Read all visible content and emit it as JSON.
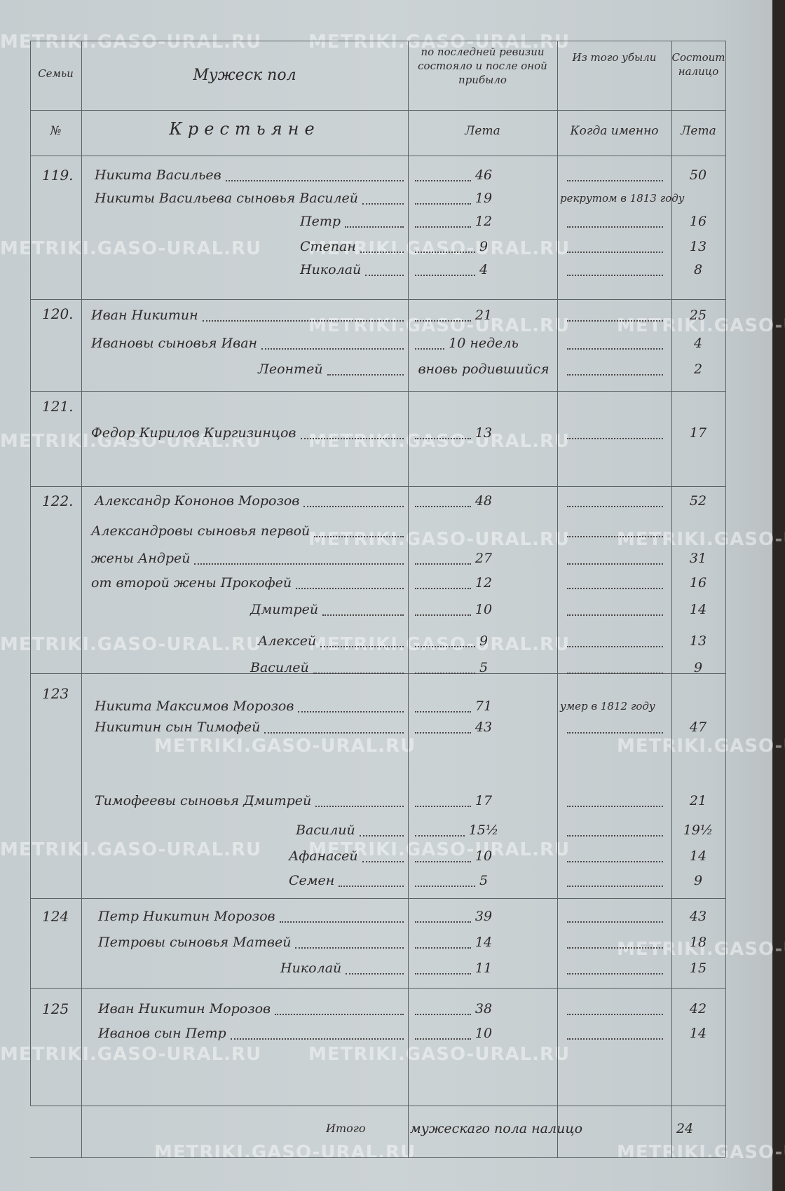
{
  "watermark": "METRIKI.GASO-URAL.RU",
  "header": {
    "columns": [
      {
        "top": "Семьи",
        "bottom": "№"
      },
      {
        "top": "Мужеск пол",
        "bottom": "Крестьяне"
      },
      {
        "top": "по последней ревизии состояло и после оной прибыло",
        "bottom": "Лета"
      },
      {
        "top": "Из того убыли",
        "bottom": "Когда именно"
      },
      {
        "top": "Состоит налицо",
        "bottom": "Лета"
      }
    ]
  },
  "families": [
    {
      "number": "119.",
      "lines": [
        {
          "name": "Никита Васильев",
          "age": "46",
          "present": "50"
        },
        {
          "name": "Никиты Васильева сыновья Василей",
          "age": "19",
          "removed": "рекрутом в 1813 году"
        },
        {
          "name": "Петр",
          "age": "12",
          "present": "16"
        },
        {
          "name": "Степан",
          "age": "9",
          "present": "13"
        },
        {
          "name": "Николай",
          "age": "4",
          "present": "8"
        }
      ]
    },
    {
      "number": "120.",
      "lines": [
        {
          "name": "Иван Никитин",
          "age": "21",
          "present": "25"
        },
        {
          "name": "Ивановы сыновья Иван",
          "age": "10 недель",
          "present": "4"
        },
        {
          "name": "Леонтей",
          "age": "вновь родившийся",
          "present": "2"
        }
      ]
    },
    {
      "number": "121.",
      "lines": [
        {
          "name": "Федор Кирилов Киргизинцов",
          "age": "13",
          "present": "17"
        }
      ]
    },
    {
      "number": "122.",
      "lines": [
        {
          "name": "Александр Кононов Морозов",
          "age": "48",
          "present": "52"
        },
        {
          "name": "Александровы сыновья первой"
        },
        {
          "name": "жены Андрей",
          "age": "27",
          "present": "31"
        },
        {
          "name": "от второй жены Прокофей",
          "age": "12",
          "present": "16"
        },
        {
          "name": "Дмитрей",
          "age": "10",
          "present": "14"
        },
        {
          "name": "Алексей",
          "age": "9",
          "present": "13"
        },
        {
          "name": "Василей",
          "age": "5",
          "present": "9"
        }
      ]
    },
    {
      "number": "123",
      "lines": [
        {
          "name": "Никита Максимов Морозов",
          "age": "71",
          "removed": "умер в 1812 году"
        },
        {
          "name": "Никитин сын Тимофей",
          "age": "43",
          "present": "47"
        },
        {
          "name": "Тимофеевы сыновья Дмитрей",
          "age": "17",
          "present": "21"
        },
        {
          "name": "Василий",
          "age": "15½",
          "present": "19½"
        },
        {
          "name": "Афанасей",
          "age": "10",
          "present": "14"
        },
        {
          "name": "Семен",
          "age": "5",
          "present": "9"
        }
      ]
    },
    {
      "number": "124",
      "lines": [
        {
          "name": "Петр Никитин Морозов",
          "age": "39",
          "present": "43"
        },
        {
          "name": "Петровы сыновья Матвей",
          "age": "14",
          "present": "18"
        },
        {
          "name": "Николай",
          "age": "11",
          "present": "15"
        }
      ]
    },
    {
      "number": "125",
      "lines": [
        {
          "name": "Иван Никитин Морозов",
          "age": "38",
          "present": "42"
        },
        {
          "name": "Иванов сын Петр",
          "age": "10",
          "present": "14"
        }
      ]
    }
  ],
  "footer": {
    "label": "Итого",
    "text": "мужескаго пола налицо",
    "total": "24"
  }
}
